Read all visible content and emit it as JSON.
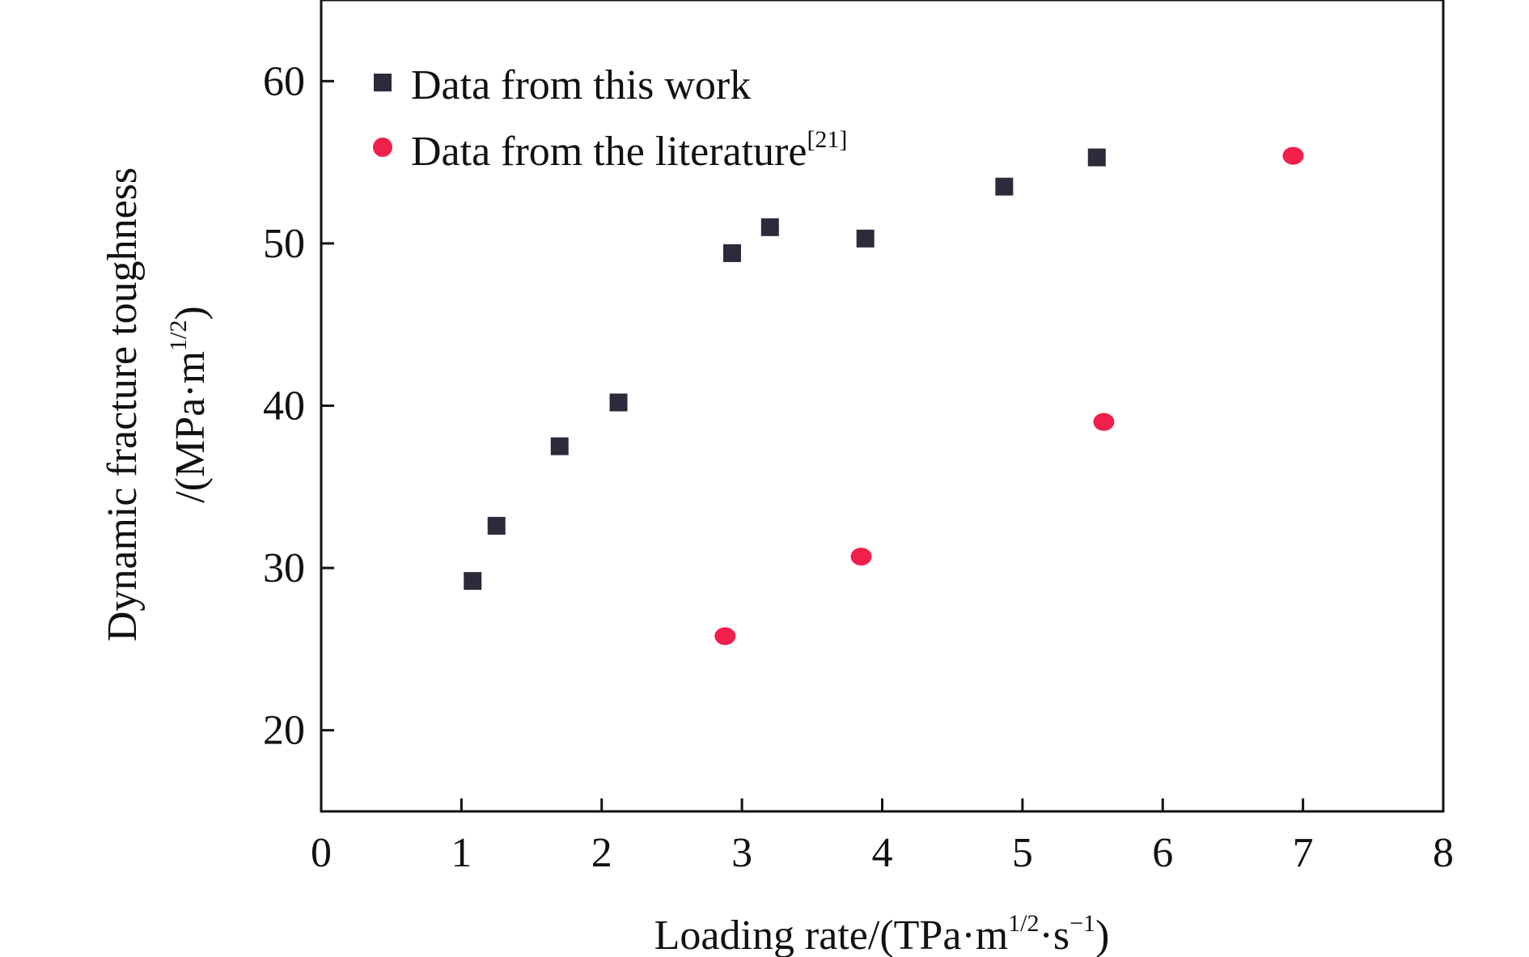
{
  "chart_data": {
    "type": "scatter",
    "xlabel": {
      "main": "Loading rate/(TPa·m",
      "sup1": "1/2",
      "mid": "·s",
      "sup2": "−1",
      "end": ")"
    },
    "ylabel": {
      "line1": "Dynamic fracture toughness",
      "line2_main": "/(MPa·m",
      "line2_sup": "1/2",
      "line2_end": ")"
    },
    "xlim": [
      0,
      8
    ],
    "ylim": [
      15,
      65
    ],
    "x_ticks": [
      "0",
      "1",
      "2",
      "3",
      "4",
      "5",
      "6",
      "7",
      "8"
    ],
    "y_ticks": [
      "20",
      "30",
      "40",
      "50",
      "60"
    ],
    "legend_position": "top-left",
    "series": [
      {
        "name": "Data from this work",
        "name_sup": "",
        "marker": "square",
        "color": "#2b2b3b",
        "points": [
          [
            1.08,
            29.2
          ],
          [
            1.25,
            32.6
          ],
          [
            1.7,
            37.5
          ],
          [
            2.12,
            40.2
          ],
          [
            2.93,
            49.4
          ],
          [
            3.2,
            51.0
          ],
          [
            3.88,
            50.3
          ],
          [
            4.87,
            53.5
          ],
          [
            5.53,
            55.3
          ]
        ]
      },
      {
        "name": "Data from the literature",
        "name_sup": "[21]",
        "marker": "circle",
        "color": "#f0204a",
        "points": [
          [
            2.88,
            25.8
          ],
          [
            3.85,
            30.7
          ],
          [
            5.58,
            39.0
          ],
          [
            6.93,
            55.4
          ]
        ]
      }
    ]
  }
}
